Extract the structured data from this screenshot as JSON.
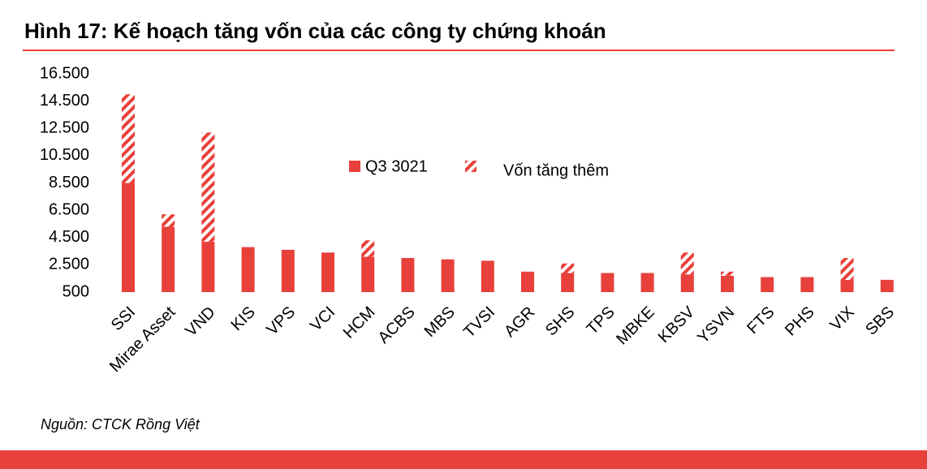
{
  "chart_data": {
    "type": "stacked-bar",
    "title": "Hình 17: Kế hoạch tăng vốn của các công ty chứng khoán",
    "source": "Nguồn: CTCK Rồng Việt",
    "categories": [
      "SSI",
      "Mirae Asset",
      "VND",
      "KIS",
      "VPS",
      "VCI",
      "HCM",
      "ACBS",
      "MBS",
      "TVSI",
      "AGR",
      "SHS",
      "TPS",
      "MBKE",
      "KBSV",
      "YSVN",
      "FTS",
      "PHS",
      "VIX",
      "SBS"
    ],
    "series": [
      {
        "name": "Q3 3021",
        "color": "#e8403a",
        "pattern": "solid",
        "values": [
          8500,
          5300,
          4200,
          3800,
          3600,
          3400,
          3100,
          3000,
          2900,
          2800,
          2000,
          1900,
          1900,
          1900,
          1800,
          1700,
          1600,
          1600,
          1400,
          1400
        ]
      },
      {
        "name": "Vốn tăng thêm",
        "color": "#e8403a",
        "pattern": "hatch",
        "values": [
          6500,
          900,
          8000,
          null,
          null,
          null,
          1200,
          null,
          null,
          null,
          null,
          700,
          null,
          null,
          1600,
          300,
          null,
          null,
          1600,
          null
        ]
      }
    ],
    "ylim": [
      500,
      16500
    ],
    "yticks": [
      {
        "value": 500,
        "label": "500"
      },
      {
        "value": 2500,
        "label": "2.500"
      },
      {
        "value": 4500,
        "label": "4.500"
      },
      {
        "value": 6500,
        "label": "6.500"
      },
      {
        "value": 8500,
        "label": "8.500"
      },
      {
        "value": 10500,
        "label": "10.500"
      },
      {
        "value": 12500,
        "label": "12.500"
      },
      {
        "value": 14500,
        "label": "14.500"
      },
      {
        "value": 16500,
        "label": "16.500"
      }
    ],
    "grid": false
  }
}
